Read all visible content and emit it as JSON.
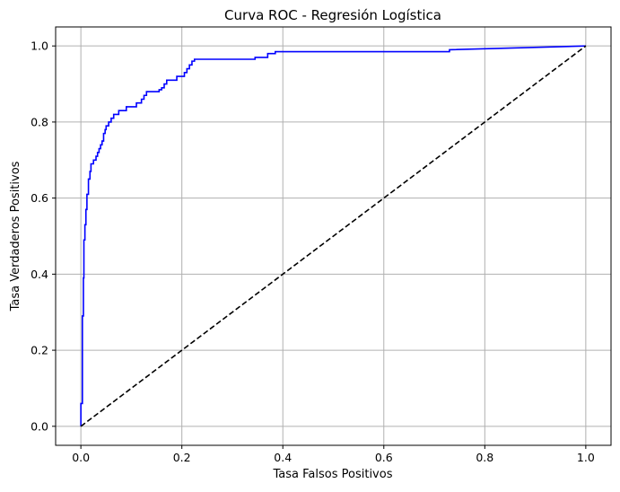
{
  "chart_data": {
    "type": "line",
    "title": "Curva ROC - Regresión Logística",
    "xlabel": "Tasa Falsos Positivos",
    "ylabel": "Tasa Verdaderos Positivos",
    "xlim": [
      -0.05,
      1.05
    ],
    "ylim": [
      -0.05,
      1.05
    ],
    "xticks": [
      0.0,
      0.2,
      0.4,
      0.6,
      0.8,
      1.0
    ],
    "yticks": [
      0.0,
      0.2,
      0.4,
      0.6,
      0.8,
      1.0
    ],
    "xtick_labels": [
      "0.0",
      "0.2",
      "0.4",
      "0.6",
      "0.8",
      "1.0"
    ],
    "ytick_labels": [
      "0.0",
      "0.2",
      "0.4",
      "0.6",
      "0.8",
      "1.0"
    ],
    "grid": true,
    "series": [
      {
        "color": "#0000ff",
        "style": "solid-step",
        "x": [
          0.0,
          0.0,
          0.003,
          0.003,
          0.005,
          0.005,
          0.006,
          0.006,
          0.008,
          0.008,
          0.01,
          0.01,
          0.012,
          0.012,
          0.015,
          0.015,
          0.018,
          0.018,
          0.02,
          0.02,
          0.025,
          0.025,
          0.03,
          0.03,
          0.033,
          0.033,
          0.036,
          0.036,
          0.039,
          0.039,
          0.042,
          0.042,
          0.045,
          0.045,
          0.048,
          0.048,
          0.05,
          0.05,
          0.055,
          0.055,
          0.06,
          0.06,
          0.065,
          0.065,
          0.075,
          0.075,
          0.09,
          0.09,
          0.11,
          0.11,
          0.12,
          0.12,
          0.125,
          0.125,
          0.13,
          0.13,
          0.155,
          0.155,
          0.16,
          0.16,
          0.165,
          0.165,
          0.17,
          0.17,
          0.19,
          0.19,
          0.205,
          0.205,
          0.21,
          0.21,
          0.215,
          0.215,
          0.22,
          0.22,
          0.225,
          0.225,
          0.345,
          0.345,
          0.37,
          0.37,
          0.385,
          0.385,
          0.73,
          0.73,
          1.0
        ],
        "y": [
          0.0,
          0.06,
          0.06,
          0.29,
          0.29,
          0.39,
          0.39,
          0.49,
          0.49,
          0.53,
          0.53,
          0.57,
          0.57,
          0.61,
          0.61,
          0.65,
          0.65,
          0.67,
          0.67,
          0.69,
          0.69,
          0.7,
          0.7,
          0.71,
          0.71,
          0.72,
          0.72,
          0.73,
          0.73,
          0.74,
          0.74,
          0.75,
          0.75,
          0.77,
          0.77,
          0.78,
          0.78,
          0.79,
          0.79,
          0.8,
          0.8,
          0.81,
          0.81,
          0.82,
          0.82,
          0.83,
          0.83,
          0.84,
          0.84,
          0.85,
          0.85,
          0.86,
          0.86,
          0.87,
          0.87,
          0.88,
          0.88,
          0.885,
          0.885,
          0.89,
          0.89,
          0.9,
          0.9,
          0.91,
          0.91,
          0.92,
          0.92,
          0.93,
          0.93,
          0.94,
          0.94,
          0.95,
          0.95,
          0.96,
          0.96,
          0.965,
          0.965,
          0.97,
          0.97,
          0.98,
          0.98,
          0.985,
          0.985,
          0.99,
          1.0
        ]
      },
      {
        "color": "#000000",
        "style": "dashed",
        "x": [
          0.0,
          1.0
        ],
        "y": [
          0.0,
          1.0
        ]
      }
    ]
  }
}
